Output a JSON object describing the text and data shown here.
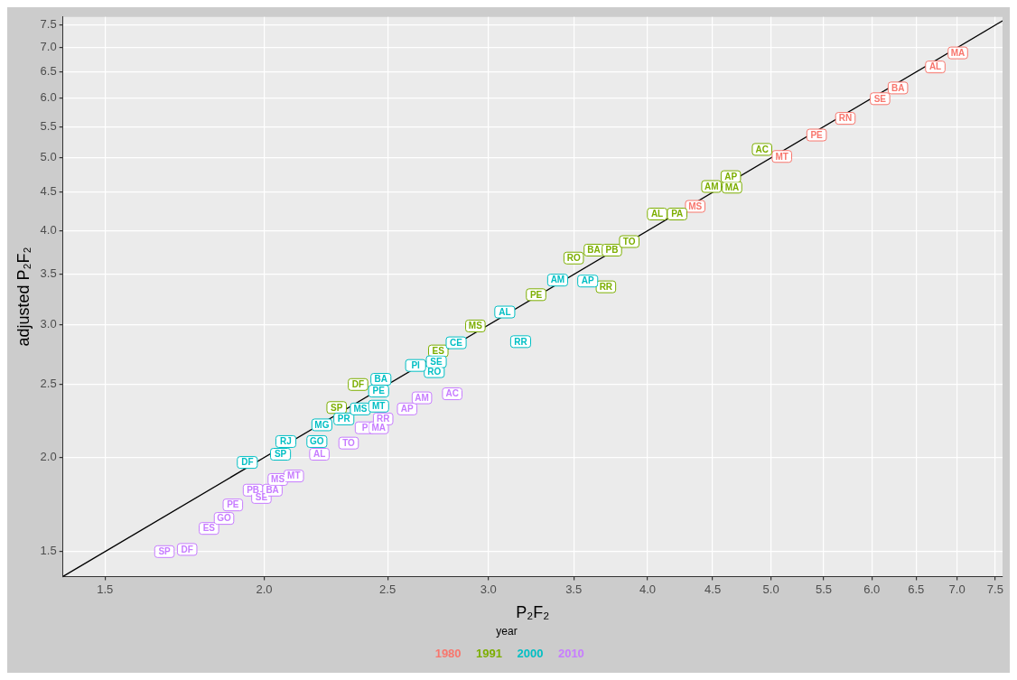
{
  "chart_data": {
    "type": "scatter",
    "xlabel": "P₂F₂",
    "ylabel": "adjusted P₂F₂",
    "legend_title": "year",
    "legend": "bottom",
    "grid": true,
    "log": "xy",
    "xlim": [
      1.39,
      7.6
    ],
    "ylim": [
      1.39,
      7.69
    ],
    "xticks": [
      {
        "value": 1.5,
        "label": "1.5"
      },
      {
        "value": 2,
        "label": "2.0"
      },
      {
        "value": 2.5,
        "label": "2.5"
      },
      {
        "value": 3,
        "label": "3.0"
      },
      {
        "value": 3.5,
        "label": "3.5"
      },
      {
        "value": 4,
        "label": "4.0"
      },
      {
        "value": 4.5,
        "label": "4.5"
      },
      {
        "value": 5,
        "label": "5.0"
      },
      {
        "value": 5.5,
        "label": "5.5"
      },
      {
        "value": 6,
        "label": "6.0"
      },
      {
        "value": 6.5,
        "label": "6.5"
      },
      {
        "value": 7,
        "label": "7.0"
      },
      {
        "value": 7.5,
        "label": "7.5"
      }
    ],
    "yticks": [
      {
        "value": 1.5,
        "label": "1.5"
      },
      {
        "value": 2,
        "label": "2.0"
      },
      {
        "value": 2.5,
        "label": "2.5"
      },
      {
        "value": 3,
        "label": "3.0"
      },
      {
        "value": 3.5,
        "label": "3.5"
      },
      {
        "value": 4,
        "label": "4.0"
      },
      {
        "value": 4.5,
        "label": "4.5"
      },
      {
        "value": 5,
        "label": "5.0"
      },
      {
        "value": 5.5,
        "label": "5.5"
      },
      {
        "value": 6,
        "label": "6.0"
      },
      {
        "value": 6.5,
        "label": "6.5"
      },
      {
        "value": 7,
        "label": "7.0"
      },
      {
        "value": 7.5,
        "label": "7.5"
      }
    ],
    "series": [
      {
        "type": "line",
        "color": "#000000",
        "x": [
          1.39,
          7.6
        ],
        "values": [
          1.39,
          7.6
        ]
      },
      {
        "name": "1980",
        "color": "#f8766d",
        "x": [
          4.36,
          5.1,
          5.43,
          5.72,
          6.09,
          6.29,
          6.73,
          7.01
        ],
        "values": [
          4.31,
          5.02,
          5.36,
          5.64,
          5.99,
          6.19,
          6.6,
          6.89
        ],
        "value_labels": [
          "MS",
          "MT",
          "PE",
          "RN",
          "SE",
          "BA",
          "AL",
          "MA"
        ]
      },
      {
        "name": "1991",
        "color": "#7cae00",
        "x": [
          2.28,
          2.37,
          2.74,
          2.93,
          3.27,
          3.5,
          3.63,
          3.75,
          3.87,
          3.71,
          4.07,
          4.22,
          4.49,
          4.66,
          4.65,
          4.92
        ],
        "values": [
          2.33,
          2.5,
          2.77,
          2.99,
          3.29,
          3.68,
          3.77,
          3.77,
          3.87,
          3.37,
          4.21,
          4.21,
          4.58,
          4.57,
          4.72,
          5.13
        ],
        "value_labels": [
          "SP",
          "DF",
          "ES",
          "MS",
          "PE",
          "RO",
          "BA",
          "PB",
          "TO",
          "RR",
          "AL",
          "PA",
          "AM",
          "MA",
          "AP",
          "AC"
        ]
      },
      {
        "name": "2000",
        "color": "#00bfc4",
        "x": [
          1.94,
          2.06,
          2.08,
          2.2,
          2.22,
          2.31,
          2.38,
          2.46,
          2.46,
          2.47,
          2.72,
          2.63,
          2.73,
          2.83,
          3.09,
          3.18,
          3.4,
          3.59
        ],
        "values": [
          1.97,
          2.02,
          2.1,
          2.1,
          2.21,
          2.25,
          2.32,
          2.34,
          2.45,
          2.54,
          2.6,
          2.65,
          2.68,
          2.84,
          3.12,
          2.85,
          3.44,
          3.43
        ],
        "value_labels": [
          "DF",
          "SP",
          "RJ",
          "GO",
          "MG",
          "PR",
          "MS",
          "MT",
          "PE",
          "BA",
          "RO",
          "PI",
          "SE",
          "CE",
          "AL",
          "RR",
          "AM",
          "AP"
        ]
      },
      {
        "name": "2010",
        "color": "#c77cff",
        "x": [
          1.67,
          1.74,
          1.81,
          1.86,
          1.89,
          1.96,
          1.99,
          2.03,
          2.05,
          2.11,
          2.21,
          2.33,
          2.4,
          2.46,
          2.48,
          2.59,
          2.66,
          2.81
        ],
        "values": [
          1.5,
          1.51,
          1.61,
          1.66,
          1.73,
          1.81,
          1.77,
          1.81,
          1.87,
          1.89,
          2.02,
          2.09,
          2.19,
          2.19,
          2.25,
          2.32,
          2.4,
          2.43
        ],
        "value_labels": [
          "SP",
          "DF",
          "ES",
          "GO",
          "PE",
          "PB",
          "SE",
          "BA",
          "MS",
          "MT",
          "AL",
          "TO",
          "P",
          "MA",
          "RR",
          "AP",
          "AM",
          "AC"
        ]
      }
    ]
  }
}
